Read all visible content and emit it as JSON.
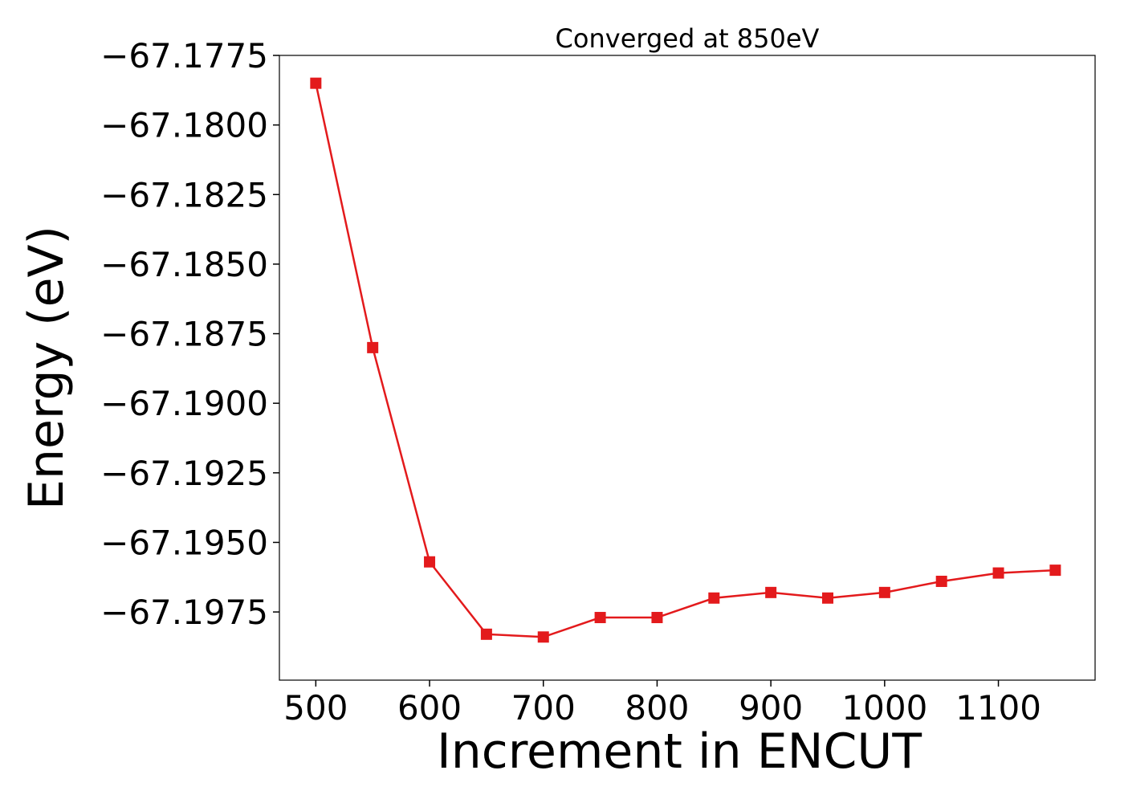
{
  "chart_data": {
    "type": "line",
    "title": "Converged at 850eV",
    "xlabel": "Increment in ENCUT",
    "ylabel": "Energy (eV)",
    "xlim": [
      468,
      1185
    ],
    "ylim": [
      -67.19995,
      -67.1775
    ],
    "x_ticks": [
      500,
      600,
      700,
      800,
      900,
      1000,
      1100
    ],
    "x_tick_labels": [
      "500",
      "600",
      "700",
      "800",
      "900",
      "1000",
      "1100"
    ],
    "y_ticks": [
      -67.1775,
      -67.18,
      -67.1825,
      -67.185,
      -67.1875,
      -67.19,
      -67.1925,
      -67.195,
      -67.1975
    ],
    "y_tick_labels": [
      "−67.1775",
      "−67.1800",
      "−67.1825",
      "−67.1850",
      "−67.1875",
      "−67.1900",
      "−67.1925",
      "−67.1950",
      "−67.1975"
    ],
    "grid": false,
    "series": [
      {
        "color": "#e31a1c",
        "marker": "square",
        "x": [
          500,
          550,
          600,
          650,
          700,
          750,
          800,
          850,
          900,
          950,
          1000,
          1050,
          1100,
          1150
        ],
        "y": [
          -67.1785,
          -67.188,
          -67.1957,
          -67.1983,
          -67.1984,
          -67.1977,
          -67.1977,
          -67.197,
          -67.1968,
          -67.197,
          -67.1968,
          -67.1964,
          -67.1961,
          -67.196
        ]
      }
    ]
  }
}
